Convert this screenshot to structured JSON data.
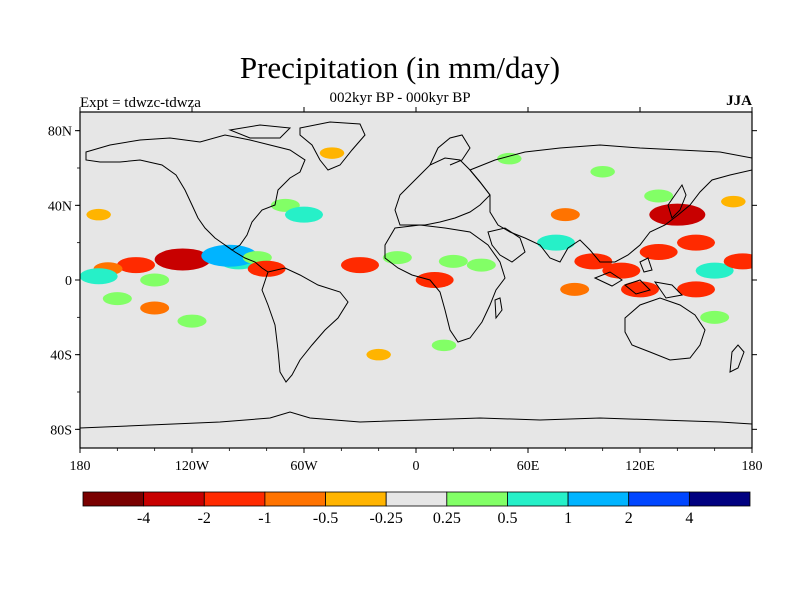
{
  "title": "Precipitation (in mm/day)",
  "subtitle": "002kyr BP - 000kyr BP",
  "left_label": "Expt = tdwzc-tdwza",
  "right_label": "JJA",
  "axes": {
    "x_ticks": [
      {
        "value": -180,
        "label": "180"
      },
      {
        "value": -120,
        "label": "120W"
      },
      {
        "value": -60,
        "label": "60W"
      },
      {
        "value": 0,
        "label": "0"
      },
      {
        "value": 60,
        "label": "60E"
      },
      {
        "value": 120,
        "label": "120E"
      },
      {
        "value": 180,
        "label": "180"
      }
    ],
    "y_ticks": [
      {
        "value": 80,
        "label": "80N"
      },
      {
        "value": 40,
        "label": "40N"
      },
      {
        "value": 0,
        "label": "0"
      },
      {
        "value": -40,
        "label": "40S"
      },
      {
        "value": -80,
        "label": "80S"
      }
    ],
    "lon_range": [
      -180,
      180
    ],
    "lat_range": [
      -90,
      90
    ]
  },
  "colorbar": {
    "colors": [
      "#7a0000",
      "#c80000",
      "#ff2a00",
      "#ff7300",
      "#ffb400",
      "#e6e6e6",
      "#82ff66",
      "#26f0c8",
      "#00b4ff",
      "#0046ff",
      "#000080"
    ],
    "labels": [
      "-4",
      "-2",
      "-1",
      "-0.5",
      "-0.25",
      "0.25",
      "0.5",
      "1",
      "2",
      "4"
    ]
  },
  "colors": {
    "land_background": "#e6e6e6",
    "dry_strong": "#ff2a00",
    "dry_mid": "#ff7300",
    "dry_weak": "#ffb400",
    "wet_weak": "#82ff66",
    "wet_mid": "#26f0c8",
    "wet_strong": "#00b4ff",
    "wet_very": "#0046ff",
    "coastline": "#000000"
  },
  "chart_data": {
    "type": "heatmap",
    "title": "Precipitation (in mm/day)",
    "subtitle": "002kyr BP - 000kyr BP",
    "experiment": "Expt = tdwzc-tdwza",
    "season": "JJA",
    "anomaly_patches": [
      {
        "lon": -150,
        "lat": 8,
        "value": -1
      },
      {
        "lon": -125,
        "lat": 11,
        "value": -2
      },
      {
        "lon": -165,
        "lat": 6,
        "value": -0.5
      },
      {
        "lon": -170,
        "lat": 2,
        "value": 1
      },
      {
        "lon": -140,
        "lat": 0,
        "value": 0.5
      },
      {
        "lon": -95,
        "lat": 10,
        "value": 1
      },
      {
        "lon": -100,
        "lat": 13,
        "value": 2
      },
      {
        "lon": -85,
        "lat": 12,
        "value": 0.5
      },
      {
        "lon": -80,
        "lat": 6,
        "value": -1
      },
      {
        "lon": -140,
        "lat": -15,
        "value": -0.5
      },
      {
        "lon": -120,
        "lat": -22,
        "value": 0.5
      },
      {
        "lon": -160,
        "lat": -10,
        "value": 0.5
      },
      {
        "lon": -170,
        "lat": 35,
        "value": -0.25
      },
      {
        "lon": -70,
        "lat": 40,
        "value": 0.5
      },
      {
        "lon": -60,
        "lat": 35,
        "value": 1
      },
      {
        "lon": -45,
        "lat": 68,
        "value": -0.25
      },
      {
        "lon": -30,
        "lat": 8,
        "value": -1
      },
      {
        "lon": -10,
        "lat": 12,
        "value": 0.5
      },
      {
        "lon": 10,
        "lat": 0,
        "value": -1
      },
      {
        "lon": 20,
        "lat": 10,
        "value": 0.5
      },
      {
        "lon": 35,
        "lat": 8,
        "value": 0.5
      },
      {
        "lon": -20,
        "lat": -40,
        "value": -0.25
      },
      {
        "lon": 15,
        "lat": -35,
        "value": 0.25
      },
      {
        "lon": 75,
        "lat": 20,
        "value": 1
      },
      {
        "lon": 80,
        "lat": 35,
        "value": -0.5
      },
      {
        "lon": 95,
        "lat": 10,
        "value": -1
      },
      {
        "lon": 110,
        "lat": 5,
        "value": -1
      },
      {
        "lon": 130,
        "lat": 15,
        "value": -1
      },
      {
        "lon": 140,
        "lat": 35,
        "value": -2
      },
      {
        "lon": 150,
        "lat": 20,
        "value": -1
      },
      {
        "lon": 160,
        "lat": 5,
        "value": 1
      },
      {
        "lon": 175,
        "lat": 10,
        "value": -1
      },
      {
        "lon": 120,
        "lat": -5,
        "value": -1
      },
      {
        "lon": 150,
        "lat": -5,
        "value": -1
      },
      {
        "lon": 160,
        "lat": -20,
        "value": 0.5
      },
      {
        "lon": 85,
        "lat": -5,
        "value": -0.5
      },
      {
        "lon": 130,
        "lat": 45,
        "value": 0.5
      },
      {
        "lon": 170,
        "lat": 42,
        "value": -0.25
      },
      {
        "lon": 50,
        "lat": 65,
        "value": 0.25
      },
      {
        "lon": 100,
        "lat": 58,
        "value": 0.25
      }
    ]
  }
}
